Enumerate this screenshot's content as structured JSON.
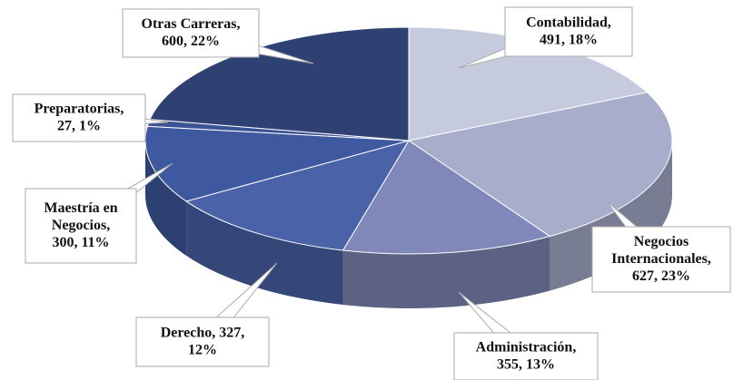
{
  "chart_data": {
    "type": "pie3d",
    "values": [
      491,
      627,
      355,
      327,
      300,
      27,
      600
    ],
    "labels": [
      [
        "Contabilidad,",
        "491, 18%"
      ],
      [
        "Negocios",
        "Internacionales,",
        "627, 23%"
      ],
      [
        "Administración,",
        "355, 13%"
      ],
      [
        "Derecho, 327,",
        "12%"
      ],
      [
        "Maestría en",
        "Negocios,",
        "300, 11%"
      ],
      [
        "Preparatorias,",
        "27, 1%"
      ],
      [
        "Otras Carreras,",
        "600, 22%"
      ]
    ],
    "colors": [
      "#c6cadd",
      "#a8adcc",
      "#7f88b8",
      "#4a63a8",
      "#3e599f",
      "#3a5395",
      "#2e4172"
    ]
  }
}
